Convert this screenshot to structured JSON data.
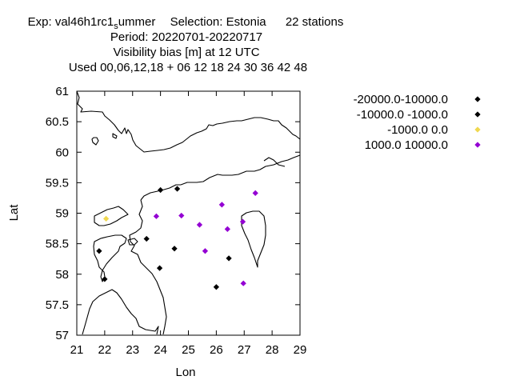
{
  "title": {
    "exp_prefix": "Exp: val46h1rc1",
    "exp_sub": "s",
    "exp_suffix": "ummer",
    "selection": "Selection: Estonia",
    "stations": "22 stations",
    "period": "Period: 20220701-20220717",
    "variable": "Visibility bias [m] at  12 UTC",
    "used": "Used  00,06,12,18  + 06 12 18 24 30 36 42 48"
  },
  "chart_data": {
    "type": "scatter",
    "xlabel": "Lon",
    "ylabel": "Lat",
    "xlim": [
      21,
      29
    ],
    "ylim": [
      57,
      61
    ],
    "x_ticks": [
      "21",
      "22",
      "23",
      "24",
      "25",
      "26",
      "27",
      "28",
      "29"
    ],
    "y_ticks": [
      "57",
      "57.5",
      "58",
      "58.5",
      "59",
      "59.5",
      "60",
      "60.5",
      "61"
    ],
    "legend_position": "outside-right",
    "series": [
      {
        "name": "-20000.0-10000.0",
        "color": "#000000",
        "points": []
      },
      {
        "name": "-10000.0 -1000.0",
        "color": "#000000",
        "points": [
          {
            "x": 24.0,
            "y": 59.38
          },
          {
            "x": 24.6,
            "y": 59.4
          },
          {
            "x": 23.5,
            "y": 58.58
          },
          {
            "x": 21.8,
            "y": 58.38
          },
          {
            "x": 24.5,
            "y": 58.42
          },
          {
            "x": 23.97,
            "y": 58.1
          },
          {
            "x": 22.0,
            "y": 57.92
          },
          {
            "x": 26.45,
            "y": 58.26
          },
          {
            "x": 26.0,
            "y": 57.79
          }
        ]
      },
      {
        "name": "-1000.0 0.0",
        "color": "#f0d850",
        "points": [
          {
            "x": 22.05,
            "y": 58.91
          }
        ]
      },
      {
        "name": "1000.0 10000.0",
        "color": "#9400d3",
        "points": [
          {
            "x": 23.85,
            "y": 58.95
          },
          {
            "x": 24.75,
            "y": 58.96
          },
          {
            "x": 25.4,
            "y": 58.81
          },
          {
            "x": 26.2,
            "y": 59.14
          },
          {
            "x": 27.4,
            "y": 59.33
          },
          {
            "x": 26.4,
            "y": 58.74
          },
          {
            "x": 26.95,
            "y": 58.86
          },
          {
            "x": 25.6,
            "y": 58.38
          },
          {
            "x": 26.97,
            "y": 57.85
          }
        ]
      }
    ]
  }
}
